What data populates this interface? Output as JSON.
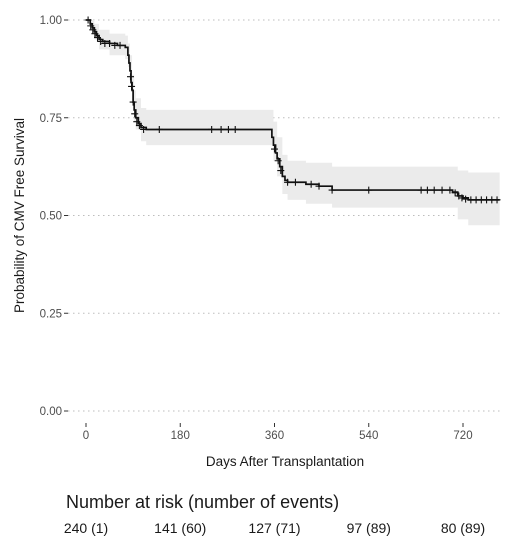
{
  "chart_data": {
    "type": "line",
    "title": "",
    "xlabel": "Days After Transplantation",
    "ylabel": "Probability of CMV Free Survival",
    "xlim": [
      -5,
      790
    ],
    "ylim": [
      0,
      1
    ],
    "x_ticks": [
      0,
      180,
      360,
      540,
      720
    ],
    "y_ticks": [
      0.0,
      0.25,
      0.5,
      0.75,
      1.0
    ],
    "x_tick_labels": [
      "0",
      "180",
      "360",
      "540",
      "720"
    ],
    "y_tick_labels": [
      "0.00",
      "0.25",
      "0.50",
      "0.75",
      "1.00"
    ],
    "grid": "horizontal dotted",
    "colors": {
      "line": "#111111",
      "ci_band": "#ebebeb",
      "grid": "#bdbdbd"
    },
    "survival_curve": [
      [
        0,
        1.0
      ],
      [
        5,
        1.0
      ],
      [
        8,
        0.99
      ],
      [
        12,
        0.98
      ],
      [
        16,
        0.97
      ],
      [
        20,
        0.96
      ],
      [
        25,
        0.95
      ],
      [
        32,
        0.945
      ],
      [
        45,
        0.94
      ],
      [
        60,
        0.935
      ],
      [
        75,
        0.93
      ],
      [
        80,
        0.91
      ],
      [
        82,
        0.89
      ],
      [
        84,
        0.87
      ],
      [
        86,
        0.84
      ],
      [
        88,
        0.82
      ],
      [
        90,
        0.79
      ],
      [
        92,
        0.77
      ],
      [
        95,
        0.75
      ],
      [
        100,
        0.735
      ],
      [
        105,
        0.725
      ],
      [
        115,
        0.72
      ],
      [
        200,
        0.72
      ],
      [
        320,
        0.72
      ],
      [
        352,
        0.72
      ],
      [
        355,
        0.7
      ],
      [
        358,
        0.68
      ],
      [
        362,
        0.66
      ],
      [
        365,
        0.645
      ],
      [
        370,
        0.625
      ],
      [
        375,
        0.6
      ],
      [
        380,
        0.59
      ],
      [
        385,
        0.585
      ],
      [
        400,
        0.585
      ],
      [
        420,
        0.58
      ],
      [
        445,
        0.575
      ],
      [
        470,
        0.565
      ],
      [
        500,
        0.565
      ],
      [
        620,
        0.565
      ],
      [
        690,
        0.565
      ],
      [
        700,
        0.56
      ],
      [
        710,
        0.55
      ],
      [
        720,
        0.545
      ],
      [
        730,
        0.54
      ],
      [
        790,
        0.54
      ]
    ],
    "ci_lower": [
      [
        0,
        1.0
      ],
      [
        8,
        0.98
      ],
      [
        16,
        0.95
      ],
      [
        25,
        0.925
      ],
      [
        45,
        0.91
      ],
      [
        75,
        0.9
      ],
      [
        80,
        0.88
      ],
      [
        84,
        0.84
      ],
      [
        88,
        0.79
      ],
      [
        92,
        0.74
      ],
      [
        95,
        0.72
      ],
      [
        105,
        0.69
      ],
      [
        115,
        0.68
      ],
      [
        352,
        0.68
      ],
      [
        358,
        0.64
      ],
      [
        365,
        0.6
      ],
      [
        375,
        0.555
      ],
      [
        385,
        0.54
      ],
      [
        420,
        0.53
      ],
      [
        470,
        0.52
      ],
      [
        690,
        0.52
      ],
      [
        710,
        0.49
      ],
      [
        730,
        0.475
      ],
      [
        790,
        0.475
      ]
    ],
    "ci_upper": [
      [
        0,
        1.0
      ],
      [
        8,
        1.0
      ],
      [
        16,
        0.99
      ],
      [
        25,
        0.975
      ],
      [
        45,
        0.965
      ],
      [
        75,
        0.96
      ],
      [
        80,
        0.94
      ],
      [
        84,
        0.91
      ],
      [
        88,
        0.86
      ],
      [
        92,
        0.82
      ],
      [
        95,
        0.8
      ],
      [
        105,
        0.775
      ],
      [
        115,
        0.77
      ],
      [
        352,
        0.77
      ],
      [
        358,
        0.74
      ],
      [
        365,
        0.7
      ],
      [
        375,
        0.655
      ],
      [
        385,
        0.64
      ],
      [
        420,
        0.635
      ],
      [
        470,
        0.625
      ],
      [
        690,
        0.625
      ],
      [
        710,
        0.615
      ],
      [
        730,
        0.61
      ],
      [
        790,
        0.61
      ]
    ],
    "censor_marks": [
      [
        4,
        1.0
      ],
      [
        9,
        0.985
      ],
      [
        13,
        0.975
      ],
      [
        17,
        0.965
      ],
      [
        22,
        0.955
      ],
      [
        28,
        0.945
      ],
      [
        36,
        0.94
      ],
      [
        45,
        0.94
      ],
      [
        55,
        0.935
      ],
      [
        65,
        0.935
      ],
      [
        85,
        0.855
      ],
      [
        87,
        0.83
      ],
      [
        90,
        0.79
      ],
      [
        93,
        0.76
      ],
      [
        97,
        0.74
      ],
      [
        102,
        0.73
      ],
      [
        110,
        0.72
      ],
      [
        140,
        0.72
      ],
      [
        240,
        0.72
      ],
      [
        258,
        0.72
      ],
      [
        272,
        0.72
      ],
      [
        285,
        0.72
      ],
      [
        360,
        0.67
      ],
      [
        367,
        0.64
      ],
      [
        372,
        0.615
      ],
      [
        385,
        0.585
      ],
      [
        400,
        0.585
      ],
      [
        430,
        0.58
      ],
      [
        445,
        0.575
      ],
      [
        470,
        0.565
      ],
      [
        540,
        0.565
      ],
      [
        640,
        0.565
      ],
      [
        652,
        0.565
      ],
      [
        665,
        0.565
      ],
      [
        680,
        0.565
      ],
      [
        695,
        0.565
      ],
      [
        705,
        0.558
      ],
      [
        712,
        0.55
      ],
      [
        718,
        0.545
      ],
      [
        725,
        0.542
      ],
      [
        735,
        0.54
      ],
      [
        745,
        0.54
      ],
      [
        755,
        0.54
      ],
      [
        765,
        0.54
      ],
      [
        775,
        0.54
      ],
      [
        785,
        0.54
      ]
    ]
  },
  "risk_table": {
    "title": "Number at risk (number of events)",
    "entries": [
      {
        "day": 0,
        "label": "240 (1)"
      },
      {
        "day": 180,
        "label": "141 (60)"
      },
      {
        "day": 360,
        "label": "127 (71)"
      },
      {
        "day": 540,
        "label": "97 (89)"
      },
      {
        "day": 720,
        "label": "80 (89)"
      }
    ]
  }
}
